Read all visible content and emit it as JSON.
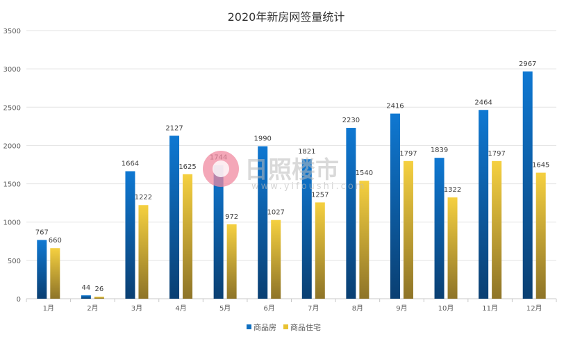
{
  "chart_data": {
    "type": "bar",
    "title": "2020年新房网签量统计",
    "categories": [
      "1月",
      "2月",
      "3月",
      "4月",
      "5月",
      "6月",
      "7月",
      "8月",
      "9月",
      "10月",
      "11月",
      "12月"
    ],
    "series": [
      {
        "name": "商品房",
        "color": "#0f6fc0",
        "values": [
          767,
          44,
          1664,
          2127,
          1744,
          1990,
          1821,
          2230,
          2416,
          1839,
          2464,
          2967
        ]
      },
      {
        "name": "商品住宅",
        "color": "#e8c232",
        "values": [
          660,
          26,
          1222,
          1625,
          972,
          1027,
          1257,
          1540,
          1797,
          1322,
          1797,
          1645
        ]
      }
    ],
    "ylim": [
      0,
      3500
    ],
    "yticks": [
      0,
      500,
      1000,
      1500,
      2000,
      2500,
      3000,
      3500
    ],
    "grid": true,
    "legend": "bottom",
    "data_labels": true
  },
  "watermark": {
    "name": "日照楼市",
    "url": "www.yifoushi.com"
  }
}
